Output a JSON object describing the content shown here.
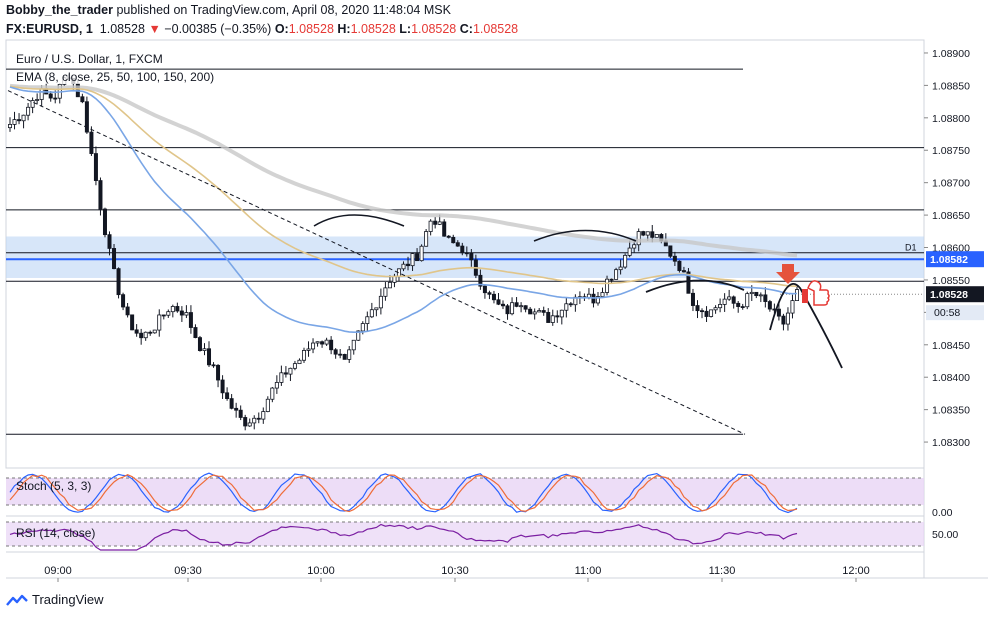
{
  "header": {
    "author": "Bobby_the_trader",
    "published": " published on TradingView.com, April 08, 2020 11:48:04 MSK",
    "symbol": "FX:EURUSD, 1",
    "last": "1.08528",
    "change": "−0.00385 (−0.35%)",
    "o_label": "O:",
    "o_val": "1.08528",
    "h_label": "H:",
    "h_val": "1.08528",
    "l_label": "L:",
    "l_val": "1.08528",
    "c_label": "C:",
    "c_val": "1.08528"
  },
  "panes": {
    "main_title": "Euro / U.S. Dollar, 1, FXCM",
    "ema_label": "EMA (8, close, 25, 50, 100, 150, 200)",
    "stoch_label": "Stoch (5, 3, 3)",
    "rsi_label": "RSI (14, close)"
  },
  "footer": {
    "brand": "TradingView"
  },
  "colors": {
    "up": "#ffffff",
    "down": "#131722",
    "zone": "#bcd6f5",
    "level": "#2962ff",
    "stoch_k": "#2962ff",
    "stoch_d": "#ef6c39",
    "rsi": "#7b1fa2",
    "arrow": "#e5533c"
  },
  "chart_data": {
    "type": "candlestick",
    "symbol": "EURUSD 1m",
    "x_ticks": [
      "09:00",
      "09:30",
      "10:00",
      "10:30",
      "11:00",
      "11:30",
      "12:00"
    ],
    "y_ticks": [
      "1.08900",
      "1.08850",
      "1.08800",
      "1.08750",
      "1.08700",
      "1.08650",
      "1.08600",
      "1.08550",
      "1.08500",
      "1.08450",
      "1.08400",
      "1.08350",
      "1.08300"
    ],
    "ylim": [
      1.0826,
      1.0892
    ],
    "price_labels": [
      {
        "text": "D1",
        "value": 1.08592
      },
      {
        "text": "1.08582",
        "value": 1.08582
      },
      {
        "text": "1.08528",
        "value": 1.08528
      },
      {
        "text": "00:58",
        "value": 1.08508
      }
    ],
    "horizontal_levels": [
      1.08875,
      1.08754,
      1.08658,
      1.08592,
      1.08548,
      1.08312
    ],
    "support_zone": [
      1.08553,
      1.08617
    ],
    "stoch_ticks": [
      "0.00"
    ],
    "rsi_ticks": [
      "50.00"
    ],
    "candles_ohlc_anchor_closes": [
      1.0879,
      1.0881,
      1.0884,
      1.0883,
      1.0887,
      1.0882,
      1.0869,
      1.0857,
      1.0849,
      1.0846,
      1.0848,
      1.0851,
      1.085,
      1.0845,
      1.0841,
      1.0836,
      1.0833,
      1.0834,
      1.0838,
      1.0841,
      1.0843,
      1.0846,
      1.0845,
      1.0842,
      1.0847,
      1.0851,
      1.0855,
      1.0857,
      1.0859,
      1.0865,
      1.0861,
      1.086,
      1.0856,
      1.0852,
      1.085,
      1.0852,
      1.085,
      1.0849,
      1.0851,
      1.0853,
      1.0852,
      1.0855,
      1.0858,
      1.0862,
      1.0862,
      1.086,
      1.0857,
      1.0851,
      1.085,
      1.0852,
      1.0851,
      1.0853,
      1.0851,
      1.0848,
      1.0853
    ]
  }
}
